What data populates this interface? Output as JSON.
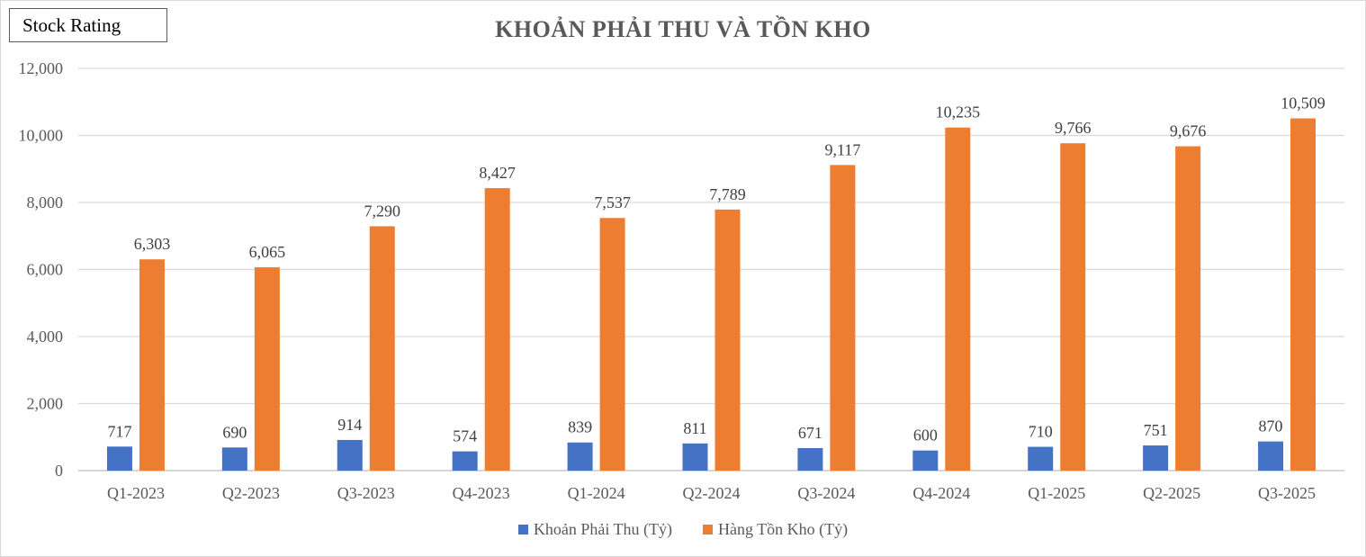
{
  "badge": {
    "label": "Stock Rating"
  },
  "chart_data": {
    "type": "bar",
    "title": "KHOẢN PHẢI THU VÀ TỒN KHO",
    "xlabel": "",
    "ylabel": "",
    "categories": [
      "Q1-2023",
      "Q2-2023",
      "Q3-2023",
      "Q4-2023",
      "Q1-2024",
      "Q2-2024",
      "Q3-2024",
      "Q4-2024",
      "Q1-2025",
      "Q2-2025",
      "Q3-2025"
    ],
    "series": [
      {
        "name": "Khoản Phải Thu (Tỷ)",
        "color": "#4472c4",
        "values": [
          717,
          690,
          914,
          574,
          839,
          811,
          671,
          600,
          710,
          751,
          870
        ]
      },
      {
        "name": "Hàng Tồn Kho (Tỷ)",
        "color": "#ed7d31",
        "values": [
          6303,
          6065,
          7290,
          8427,
          7537,
          7789,
          9117,
          10235,
          9766,
          9676,
          10509
        ]
      }
    ],
    "ylim": [
      0,
      12000
    ],
    "yticks": [
      0,
      2000,
      4000,
      6000,
      8000,
      10000,
      12000
    ],
    "grid": true,
    "legend_position": "bottom"
  }
}
